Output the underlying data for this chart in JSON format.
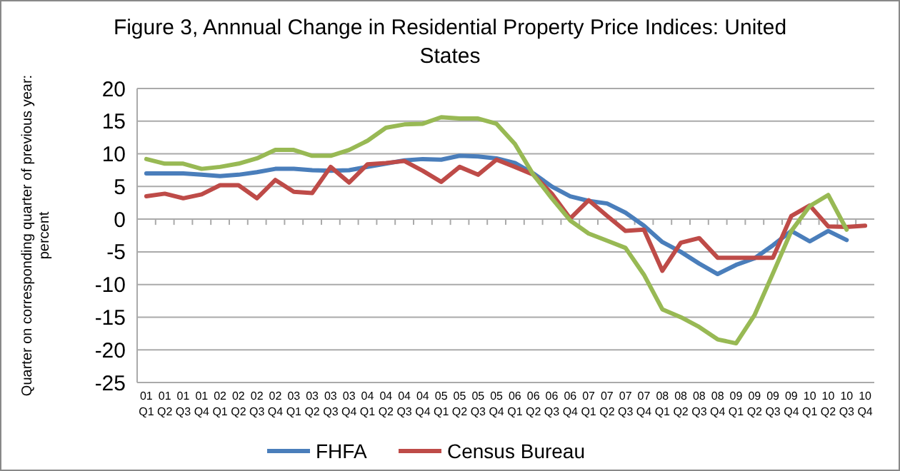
{
  "chart_data": {
    "type": "line",
    "title": "Figure 3, Annnual Change in Residential Property Price Indices: United States",
    "ylabel": "Quarter on corresponding quarter of previous year: percent",
    "categories": [
      "01 Q1",
      "01 Q2",
      "01 Q3",
      "01 Q4",
      "02 Q1",
      "02 Q2",
      "02 Q3",
      "02 Q4",
      "03 Q1",
      "03 Q2",
      "03 Q3",
      "03 Q4",
      "04 Q1",
      "04 Q2",
      "04 Q3",
      "04 Q4",
      "05 Q1",
      "05 Q2",
      "05 Q3",
      "05 Q4",
      "06 Q1",
      "06 Q2",
      "06 Q3",
      "06 Q4",
      "07 Q1",
      "07 Q2",
      "07 Q3",
      "07 Q4",
      "08 Q1",
      "08 Q2",
      "08 Q3",
      "08 Q4",
      "09 Q1",
      "09 Q2",
      "09 Q3",
      "09 Q4",
      "10 Q1",
      "10 Q2",
      "10 Q3",
      "10 Q4"
    ],
    "series": [
      {
        "name": "FHFA",
        "color": "#4a7ebb",
        "values": [
          7,
          7,
          7,
          6.8,
          6.6,
          6.8,
          7.2,
          7.7,
          7.7,
          7.5,
          7.4,
          7.5,
          8,
          8.5,
          9,
          9.2,
          9.1,
          9.7,
          9.6,
          9.3,
          8.6,
          7,
          5,
          3.5,
          2.8,
          2.4,
          1,
          -1,
          -3.5,
          -5,
          -6.8,
          -8.4,
          -7,
          -6,
          -4,
          -1.8,
          -3.4,
          -1.8,
          -3.2,
          null
        ]
      },
      {
        "name": "Census Bureau",
        "color": "#be4b48",
        "values": [
          3.5,
          3.9,
          3.2,
          3.8,
          5.2,
          5.2,
          3.2,
          6,
          4.2,
          4,
          8,
          5.6,
          8.4,
          8.6,
          8.9,
          7.4,
          5.7,
          8,
          6.8,
          9.1,
          8,
          6.8,
          3.9,
          0.1,
          2.9,
          0.5,
          -1.8,
          -1.6,
          -7.9,
          -3.6,
          -2.9,
          -5.9,
          -5.9,
          -5.9,
          -5.9,
          0.5,
          2.1,
          -1.1,
          -1.2,
          -1
        ]
      },
      {
        "color": "#98b954",
        "values": [
          9.2,
          8.5,
          8.5,
          7.7,
          8,
          8.5,
          9.3,
          10.6,
          10.6,
          9.7,
          9.7,
          10.6,
          12,
          14,
          14.5,
          14.6,
          15.6,
          15.4,
          15.4,
          14.6,
          11.5,
          6.8,
          3.2,
          -0.2,
          -2.2,
          -3.3,
          -4.4,
          -8.5,
          -13.8,
          -15,
          -16.5,
          -18.4,
          -19,
          -14.7,
          -8.3,
          -1.8,
          2,
          3.7,
          -1.6,
          null
        ]
      }
    ],
    "ylim": [
      -25,
      20
    ],
    "yticks": [
      -25,
      -20,
      -15,
      -10,
      -5,
      0,
      5,
      10,
      15,
      20
    ],
    "grid": "y",
    "legend": "bottom",
    "marker": "none",
    "line_style": "solid"
  }
}
